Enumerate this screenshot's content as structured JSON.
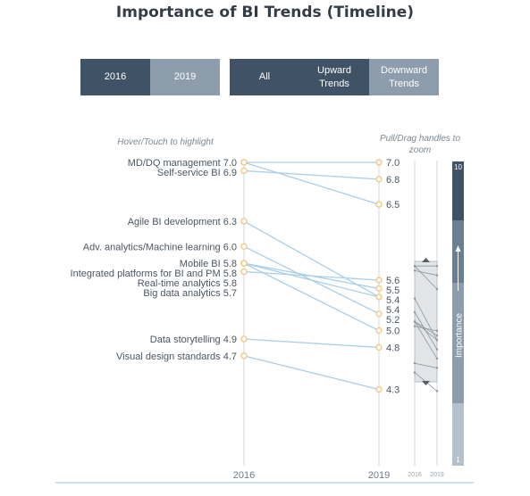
{
  "title": "Importance of BI Trends (Timeline)",
  "year_buttons": [
    {
      "label": "2016",
      "active": true
    },
    {
      "label": "2019",
      "active": false
    }
  ],
  "filter_buttons": [
    {
      "label": "All",
      "active": true
    },
    {
      "label": "Upward Trends",
      "active": true
    },
    {
      "label": "Downward Trends",
      "active": false
    }
  ],
  "hints": {
    "highlight": "Hover/Touch to highlight",
    "drag": "Pull/Drag handles to zoom"
  },
  "colors": {
    "line": "#a9cfe9",
    "marker": "#f3c47a",
    "axis": "#cfd6dc",
    "band_dark": "#3f5266",
    "band_mid": "#6b7f91",
    "band_light": "#8d9dab",
    "band_lighter": "#b4c0ca"
  },
  "chart_data": {
    "type": "slope",
    "x": [
      "2016",
      "2019"
    ],
    "series": [
      {
        "name": "MD/DQ management",
        "v2016": 7.0,
        "v2019": 7.0,
        "v2019_label": "7.0"
      },
      {
        "name": "Self-service BI",
        "v2016": 6.9,
        "v2019": 6.8,
        "v2019_label": "6.8"
      },
      {
        "name": "Agile BI development",
        "v2016": 6.3,
        "v2019": 5.4,
        "v2019_label": "5.4"
      },
      {
        "name": "Adv. analytics/Machine learning",
        "v2016": 6.0,
        "v2019": 5.2,
        "v2019_label": "5.2"
      },
      {
        "name": "Mobile BI",
        "v2016": 5.8,
        "v2019": 5.0,
        "v2019_label": "5.0"
      },
      {
        "name": "Integrated platforms for BI and PM",
        "v2016": 5.8,
        "v2019": 5.5,
        "v2019_label": "5.5"
      },
      {
        "name": "Real-time analytics",
        "v2016": 5.8,
        "v2019": 5.4,
        "v2019_label": "5.4"
      },
      {
        "name": "Big data analytics",
        "v2016": 5.7,
        "v2019": 5.6,
        "v2019_label": "5.6"
      },
      {
        "name": "Data storytelling",
        "v2016": 4.9,
        "v2019": 4.8,
        "v2019_label": "4.8"
      },
      {
        "name": "Visual design standards",
        "v2016": 4.7,
        "v2019": 4.3,
        "v2019_label": "4.3"
      },
      {
        "name": "",
        "v2016": 7.0,
        "v2019": 6.5,
        "v2019_label": "6.5"
      }
    ],
    "labels_2016": [
      {
        "text": "MD/DQ management",
        "value": "7.0"
      },
      {
        "text": "Self-service BI",
        "value": "6.9"
      },
      {
        "text": "Agile BI development",
        "value": "6.3"
      },
      {
        "text": "Adv. analytics/Machine learning",
        "value": "6.0"
      },
      {
        "text": "Mobile BI",
        "value": "5.8"
      },
      {
        "text": "Integrated platforms for BI and PM",
        "value": "5.8"
      },
      {
        "text": "Real-time analytics",
        "value": "5.8"
      },
      {
        "text": "Big data analytics",
        "value": "5.7"
      },
      {
        "text": "Data storytelling",
        "value": "4.9"
      },
      {
        "text": "Visual design standards",
        "value": "4.7"
      }
    ],
    "labels_2019": [
      "7.0",
      "6.8",
      "6.5",
      "5.6",
      "5.5",
      "5.4",
      "5.4",
      "5.2",
      "5.0",
      "4.8",
      "4.3"
    ],
    "ylim": [
      4.2,
      7.0
    ],
    "zoom_window": [
      4.5,
      7.1
    ],
    "scale_axis": {
      "label": "Importance",
      "min_label": "1",
      "max_label": "10",
      "range": [
        1,
        10
      ]
    }
  }
}
